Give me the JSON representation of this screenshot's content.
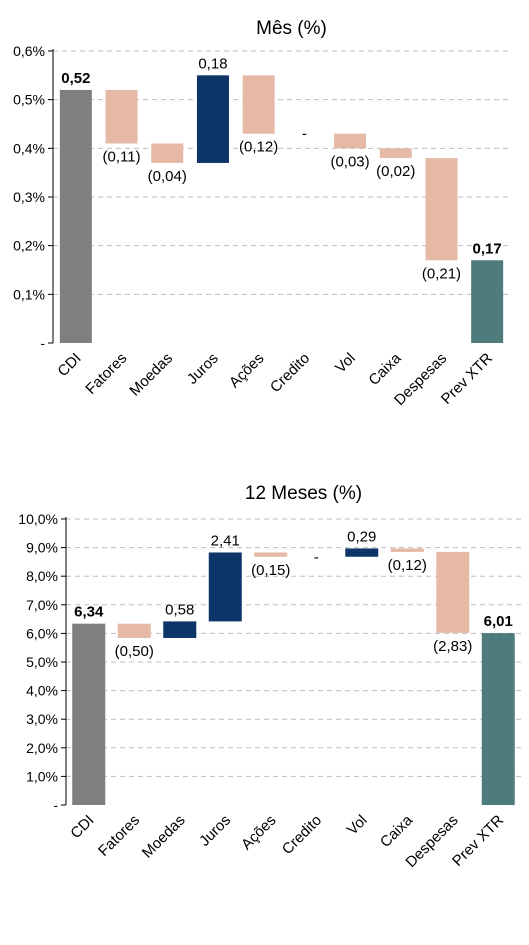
{
  "colors": {
    "base": "#7f7f7f",
    "negative": "#e6b9a6",
    "positive": "#0d3568",
    "result": "#4e7b7b",
    "grid": "#bfbfbf",
    "axis": "#000000"
  },
  "chart_data": [
    {
      "type": "bar",
      "subtype": "waterfall",
      "title": "Mês (%)",
      "categories": [
        "CDI",
        "Fatores",
        "Moedas",
        "Juros",
        "Ações",
        "Credito",
        "Vol",
        "Caixa",
        "Despesas",
        "Prev XTR"
      ],
      "values": [
        0.52,
        -0.11,
        -0.04,
        0.18,
        -0.12,
        0,
        -0.03,
        -0.02,
        -0.21,
        0.17
      ],
      "kinds": [
        "base",
        "negative",
        "negative",
        "positive",
        "negative",
        "zero",
        "negative",
        "negative",
        "negative",
        "result"
      ],
      "bar_start": [
        0,
        0.52,
        0.41,
        0.37,
        0.55,
        0.43,
        0.43,
        0.4,
        0.38,
        0
      ],
      "bar_end": [
        0.52,
        0.41,
        0.37,
        0.55,
        0.43,
        0.43,
        0.4,
        0.38,
        0.17,
        0.17
      ],
      "data_labels": [
        "0,52",
        "(0,11)",
        "(0,04)",
        "0,18",
        "(0,12)",
        "-",
        "(0,03)",
        "(0,02)",
        "(0,21)",
        "0,17"
      ],
      "label_bold": [
        true,
        false,
        false,
        false,
        false,
        false,
        false,
        false,
        false,
        true
      ],
      "ylim": [
        0,
        0.6
      ],
      "yticks": [
        0,
        0.1,
        0.2,
        0.3,
        0.4,
        0.5,
        0.6
      ],
      "ytick_labels": [
        "-",
        "0,1%",
        "0,2%",
        "0,3%",
        "0,4%",
        "0,5%",
        "0,6%"
      ],
      "grid": true
    },
    {
      "type": "bar",
      "subtype": "waterfall",
      "title": "12 Meses (%)",
      "categories": [
        "CDI",
        "Fatores",
        "Moedas",
        "Juros",
        "Ações",
        "Credito",
        "Vol",
        "Caixa",
        "Despesas",
        "Prev XTR"
      ],
      "values": [
        6.34,
        -0.5,
        0.58,
        2.41,
        -0.15,
        0,
        0.29,
        -0.12,
        -2.83,
        6.01
      ],
      "kinds": [
        "base",
        "negative",
        "positive",
        "positive",
        "negative",
        "zero",
        "positive",
        "negative",
        "negative",
        "result"
      ],
      "bar_start": [
        0,
        6.34,
        5.84,
        6.42,
        8.83,
        8.68,
        8.68,
        8.97,
        8.85,
        0
      ],
      "bar_end": [
        6.34,
        5.84,
        6.42,
        8.83,
        8.68,
        8.68,
        8.97,
        8.85,
        6.02,
        6.01
      ],
      "data_labels": [
        "6,34",
        "(0,50)",
        "0,58",
        "2,41",
        "(0,15)",
        "-",
        "0,29",
        "(0,12)",
        "(2,83)",
        "6,01"
      ],
      "label_bold": [
        true,
        false,
        false,
        false,
        false,
        false,
        false,
        false,
        false,
        true
      ],
      "ylim": [
        0,
        10
      ],
      "yticks": [
        0,
        1,
        2,
        3,
        4,
        5,
        6,
        7,
        8,
        9,
        10
      ],
      "ytick_labels": [
        "-",
        "1,0%",
        "2,0%",
        "3,0%",
        "4,0%",
        "5,0%",
        "6,0%",
        "7,0%",
        "8,0%",
        "9,0%",
        "10,0%"
      ],
      "grid": true
    }
  ]
}
